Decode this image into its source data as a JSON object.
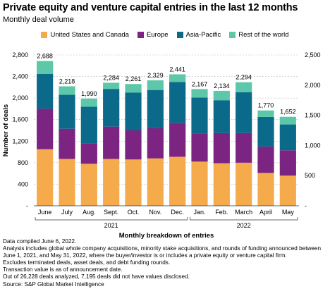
{
  "title": "Private equity and venture capital entries in the last 12 months",
  "subtitle": "Monthly deal volume",
  "colors": {
    "United States and Canada": "#f5ab4c",
    "Europe": "#7b2481",
    "Asia-Pacific": "#0b6a8a",
    "Rest of the world": "#5cc7a9",
    "grid": "#bdbdbd",
    "axis": "#333333"
  },
  "chart_data": {
    "type": "bar",
    "stacked": true,
    "categories": [
      "June",
      "July",
      "Aug.",
      "Sept.",
      "Oct.",
      "Nov.",
      "Dec.",
      "Jan.",
      "Feb.",
      "March",
      "April",
      "May"
    ],
    "year_groups": [
      {
        "label": "2021",
        "start": 0,
        "end": 6
      },
      {
        "label": "2022",
        "start": 7,
        "end": 11
      }
    ],
    "series": [
      {
        "name": "United States and Canada",
        "values": [
          1050,
          870,
          780,
          870,
          860,
          880,
          910,
          820,
          790,
          800,
          610,
          560
        ]
      },
      {
        "name": "Europe",
        "values": [
          750,
          560,
          380,
          600,
          540,
          560,
          630,
          520,
          560,
          550,
          490,
          470
        ]
      },
      {
        "name": "Asia-Pacific",
        "values": [
          650,
          630,
          680,
          700,
          700,
          710,
          760,
          670,
          610,
          760,
          550,
          480
        ]
      },
      {
        "name": "Rest of the world",
        "values": [
          238,
          158,
          150,
          114,
          161,
          179,
          141,
          157,
          174,
          184,
          120,
          142
        ]
      }
    ],
    "totals": [
      2688,
      2218,
      1990,
      2284,
      2261,
      2329,
      2441,
      2167,
      2134,
      2294,
      1770,
      1652
    ],
    "total_labels": [
      "2,688",
      "2,218",
      "1,990",
      "2,284",
      "2,261",
      "2,329",
      "2,441",
      "2,167",
      "2,134",
      "2,294",
      "1,770",
      "1,652"
    ],
    "ylabel": "Number of deals",
    "xlabel": "Monthly breakdown of entries",
    "ylim": [
      0,
      2800
    ],
    "left_ticks": [
      {
        "value": 0,
        "label": "-"
      },
      {
        "value": 400,
        "label": "400"
      },
      {
        "value": 800,
        "label": "800"
      },
      {
        "value": 1200,
        "label": "1,200"
      },
      {
        "value": 1600,
        "label": "1,600"
      },
      {
        "value": 2000,
        "label": "2,000"
      },
      {
        "value": 2400,
        "label": "2,400"
      },
      {
        "value": 2800,
        "label": "2,800"
      }
    ],
    "right_ylim": [
      0,
      2500
    ],
    "right_ticks": [
      {
        "value": 0,
        "label": "-"
      },
      {
        "value": 500,
        "label": "500"
      },
      {
        "value": 1000,
        "label": "1,000"
      },
      {
        "value": 1500,
        "label": "1,500"
      },
      {
        "value": 2000,
        "label": "2,000"
      },
      {
        "value": 2500,
        "label": "2,500"
      }
    ],
    "grid": true,
    "legend_position": "top-center"
  },
  "notes": [
    "Data compiled June 6, 2022.",
    "Analysis includes global whole company acquisitions, minority stake acquisitions, and rounds of funding announced between",
    "June 1, 2021, and May  31, 2022, where the buyer/investor is or includes a private equity or venture capital firm.",
    "Excludes terminated deals, asset deals, and debt funding rounds.",
    "Transaction value is as of announcement date.",
    "Out of 26,228 deals analyzed, 7,195 deals did not have values disclosed.",
    "Source: S&P Global Market Intelligence"
  ]
}
